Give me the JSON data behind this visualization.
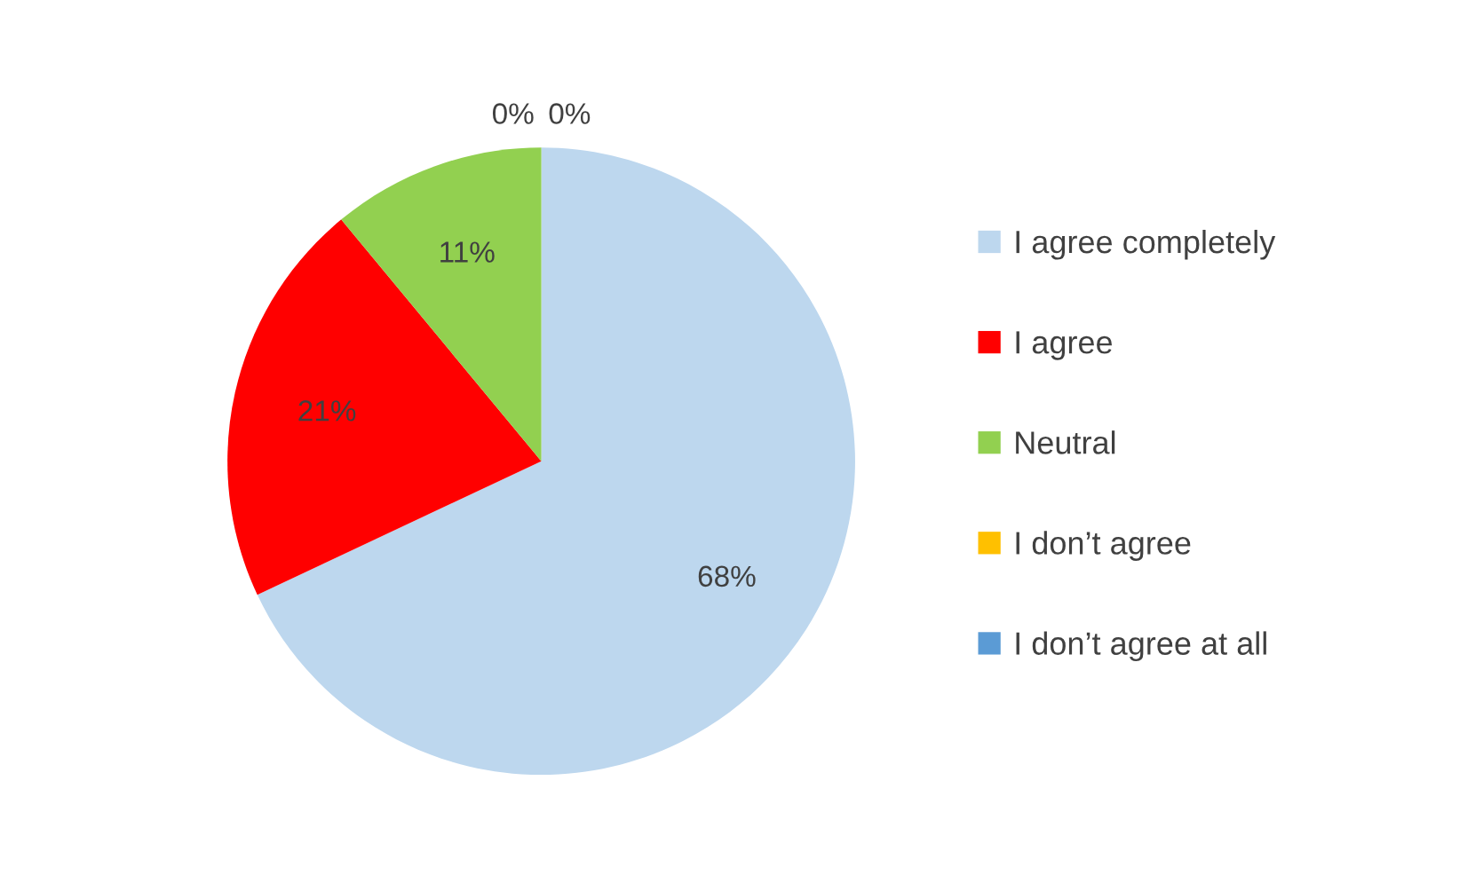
{
  "chart_data": {
    "type": "pie",
    "categories": [
      "I agree completely",
      "I agree",
      "Neutral",
      "I don’t agree",
      "I don’t agree at all"
    ],
    "values": [
      68,
      21,
      11,
      0,
      0
    ],
    "colors": [
      "#bdd7ee",
      "#ff0000",
      "#92d050",
      "#ffc000",
      "#5b9bd5"
    ],
    "value_labels": [
      "68%",
      "21%",
      "11%",
      "0%",
      "0%"
    ],
    "legend": "right"
  }
}
